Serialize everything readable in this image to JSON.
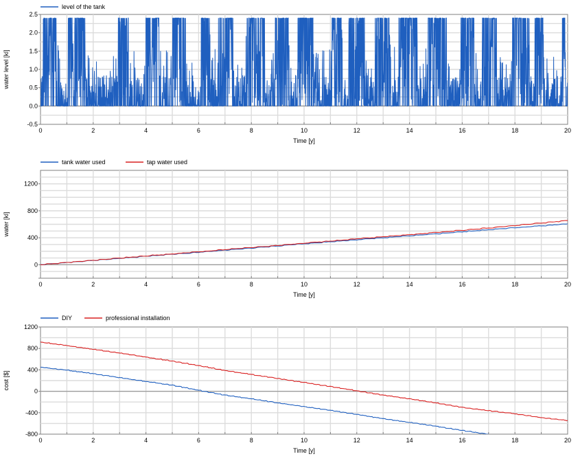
{
  "chart_data": [
    {
      "type": "line",
      "xlabel": "Time [y]",
      "ylabel": "water level [kl]",
      "xlim": [
        0,
        20
      ],
      "ylim": [
        -0.5,
        2.5
      ],
      "xticks": [
        0,
        2,
        4,
        6,
        8,
        10,
        12,
        14,
        16,
        18,
        20
      ],
      "yticks": [
        -0.5,
        0.0,
        0.5,
        1.0,
        1.5,
        2.0,
        2.5
      ],
      "ytick_labels": [
        "-0.5",
        "0.0",
        "0.5",
        "1.0",
        "1.5",
        "2.0",
        "2.5"
      ],
      "legend": "top-left",
      "grid": true,
      "series": [
        {
          "name": "level of the tank",
          "color": "#1f5fbf",
          "style": "oscillating",
          "max": 2.4,
          "min": 0.0,
          "fill_periods": [
            [
              0.1,
              0.6
            ],
            [
              1.05,
              1.7
            ],
            [
              2.95,
              3.35
            ],
            [
              4.0,
              4.5
            ],
            [
              5.0,
              5.5
            ],
            [
              6.05,
              6.45
            ],
            [
              6.75,
              7.3
            ],
            [
              7.8,
              8.5
            ],
            [
              8.9,
              9.4
            ],
            [
              9.75,
              10.35
            ],
            [
              11.05,
              11.45
            ],
            [
              11.7,
              12.3
            ],
            [
              12.7,
              13.25
            ],
            [
              13.6,
              14.3
            ],
            [
              14.7,
              15.4
            ],
            [
              15.95,
              16.45
            ],
            [
              16.75,
              17.3
            ],
            [
              17.9,
              18.55
            ],
            [
              18.75,
              19.1
            ],
            [
              19.8,
              19.9
            ]
          ]
        }
      ]
    },
    {
      "type": "line",
      "xlabel": "Time [y]",
      "ylabel": "water [kl]",
      "xlim": [
        0,
        20
      ],
      "ylim": [
        -200,
        1400
      ],
      "xticks": [
        0,
        2,
        4,
        6,
        8,
        10,
        12,
        14,
        16,
        18,
        20
      ],
      "yticks": [
        -200,
        0,
        400,
        800,
        1200
      ],
      "ytick_labels": [
        "",
        "0",
        "400",
        "800",
        "1200"
      ],
      "legend": "top-left",
      "grid": true,
      "series": [
        {
          "name": "tank water used",
          "color": "#1f5fbf",
          "x": [
            0,
            2,
            4,
            6,
            8,
            10,
            12,
            14,
            16,
            18,
            20
          ],
          "y": [
            0,
            63,
            124,
            184,
            246,
            310,
            370,
            428,
            488,
            548,
            605
          ]
        },
        {
          "name": "tap water used",
          "color": "#d92020",
          "x": [
            0,
            2,
            4,
            6,
            8,
            10,
            12,
            14,
            16,
            18,
            20
          ],
          "y": [
            0,
            65,
            130,
            190,
            255,
            318,
            382,
            445,
            510,
            580,
            655
          ]
        }
      ]
    },
    {
      "type": "line",
      "xlabel": "Time [y]",
      "ylabel": "cost [$]",
      "xlim": [
        0,
        20
      ],
      "ylim": [
        -800,
        1200
      ],
      "xticks": [
        0,
        2,
        4,
        6,
        8,
        10,
        12,
        14,
        16,
        18,
        20
      ],
      "yticks": [
        -800,
        -400,
        0,
        400,
        800,
        1200
      ],
      "ytick_labels": [
        "-800",
        "-400",
        "0",
        "400",
        "800",
        "1200"
      ],
      "legend": "top-left",
      "grid": true,
      "series": [
        {
          "name": "DIY",
          "color": "#1f5fbf",
          "x": [
            0,
            1,
            2,
            3,
            4,
            5,
            6,
            7,
            8,
            9,
            10,
            11,
            12,
            13,
            14,
            15,
            16,
            17
          ],
          "y": [
            450,
            395,
            330,
            255,
            185,
            115,
            20,
            -70,
            -140,
            -215,
            -285,
            -355,
            -430,
            -510,
            -580,
            -650,
            -730,
            -800
          ]
        },
        {
          "name": "professional installation",
          "color": "#d92020",
          "x": [
            0,
            1,
            2,
            3,
            4,
            5,
            6,
            7,
            8,
            9,
            10,
            11,
            12,
            13,
            14,
            15,
            16,
            17,
            18,
            19,
            20
          ],
          "y": [
            920,
            855,
            785,
            715,
            640,
            565,
            480,
            390,
            315,
            240,
            165,
            90,
            10,
            -70,
            -140,
            -215,
            -300,
            -360,
            -420,
            -490,
            -545
          ]
        }
      ]
    }
  ]
}
